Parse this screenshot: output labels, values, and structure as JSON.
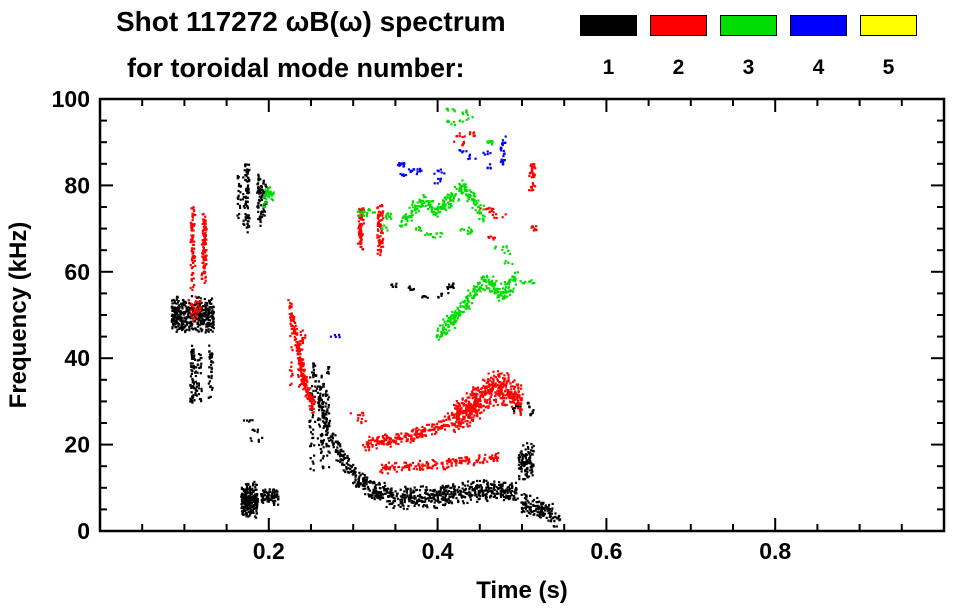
{
  "header": {
    "title_line1": "Shot 117272 ωB(ω) spectrum",
    "title_line2": "for toroidal mode number:"
  },
  "legend": {
    "items": [
      {
        "label": "1",
        "color": "#000000"
      },
      {
        "label": "2",
        "color": "#ff0000"
      },
      {
        "label": "3",
        "color": "#00dd00"
      },
      {
        "label": "4",
        "color": "#0000ff"
      },
      {
        "label": "5",
        "color": "#ffff00"
      }
    ]
  },
  "chart_data": {
    "type": "scatter",
    "title": "Shot 117272 ωB(ω) spectrum for toroidal mode number",
    "xlabel": "Time (s)",
    "ylabel": "Frequency (kHz)",
    "xlim": [
      0.0,
      1.0
    ],
    "ylim": [
      0,
      100
    ],
    "x_major_ticks": [
      0.2,
      0.4,
      0.6,
      0.8
    ],
    "x_tick_labels": [
      "0.2",
      "0.4",
      "0.6",
      "0.8"
    ],
    "x_minor_step": 0.05,
    "y_major_ticks": [
      0,
      20,
      40,
      60,
      80,
      100
    ],
    "y_tick_labels": [
      "0",
      "20",
      "40",
      "60",
      "80",
      "100"
    ],
    "y_minor_step": 5,
    "grid": false,
    "legend_position": "top-right",
    "series": [
      {
        "name": "toroidal mode n=1",
        "color": "#000000",
        "clusters": [
          {
            "type": "blob",
            "t": [
              0.085,
              0.135
            ],
            "f": [
              44,
              56
            ],
            "n": 420
          },
          {
            "type": "vstreaks",
            "t": [
              0.1,
              0.142
            ],
            "f": [
              28,
              44
            ],
            "k": 7,
            "n": 130
          },
          {
            "type": "vstreaks",
            "t": [
              0.164,
              0.178
            ],
            "f": [
              68,
              86
            ],
            "k": 5,
            "n": 110
          },
          {
            "type": "vstreaks",
            "t": [
              0.187,
              0.2
            ],
            "f": [
              70,
              84
            ],
            "k": 4,
            "n": 80
          },
          {
            "type": "blob",
            "t": [
              0.167,
              0.187
            ],
            "f": [
              1,
              13
            ],
            "n": 240
          },
          {
            "type": "blob",
            "t": [
              0.19,
              0.212
            ],
            "f": [
              5,
              11
            ],
            "n": 90
          },
          {
            "type": "dashes",
            "t": [
              0.175,
              0.2
            ],
            "f": [
              21,
              26
            ],
            "k": 3,
            "n": 15
          },
          {
            "type": "vstreaks",
            "t": [
              0.25,
              0.272
            ],
            "f": [
              12,
              40
            ],
            "k": 7,
            "n": 140
          },
          {
            "type": "path",
            "pts": [
              [
                0.252,
                38
              ],
              [
                0.265,
                27
              ],
              [
                0.278,
                20
              ],
              [
                0.292,
                15
              ],
              [
                0.31,
                11
              ],
              [
                0.335,
                8.5
              ],
              [
                0.365,
                7.5
              ],
              [
                0.4,
                8
              ],
              [
                0.435,
                9
              ],
              [
                0.465,
                9.5
              ],
              [
                0.495,
                9
              ]
            ],
            "w": 3,
            "n": 780
          },
          {
            "type": "dashes",
            "t": [
              0.34,
              0.425
            ],
            "f": [
              54,
              57
            ],
            "k": 6,
            "n": 36
          },
          {
            "type": "blob",
            "t": [
              0.496,
              0.514
            ],
            "f": [
              10,
              22
            ],
            "n": 110
          },
          {
            "type": "dashes",
            "t": [
              0.495,
              0.512
            ],
            "f": [
              27,
              32
            ],
            "k": 4,
            "n": 22
          },
          {
            "type": "path",
            "pts": [
              [
                0.5,
                6.5
              ],
              [
                0.518,
                5.5
              ],
              [
                0.532,
                4
              ],
              [
                0.545,
                2.5
              ]
            ],
            "w": 2.8,
            "n": 150
          }
        ]
      },
      {
        "name": "toroidal mode n=2",
        "color": "#ff0000",
        "clusters": [
          {
            "type": "vstreaks",
            "t": [
              0.103,
              0.126
            ],
            "f": [
              55,
              76
            ],
            "k": 7,
            "n": 180
          },
          {
            "type": "blob",
            "t": [
              0.105,
              0.12
            ],
            "f": [
              47,
              56
            ],
            "n": 36
          },
          {
            "type": "path",
            "pts": [
              [
                0.224,
                52
              ],
              [
                0.232,
                45
              ],
              [
                0.24,
                37
              ],
              [
                0.248,
                31
              ],
              [
                0.254,
                28.5
              ]
            ],
            "w": 2.6,
            "n": 190
          },
          {
            "type": "vstreaks",
            "t": [
              0.225,
              0.242
            ],
            "f": [
              30,
              52
            ],
            "k": 4,
            "n": 60
          },
          {
            "type": "vstreaks",
            "t": [
              0.298,
              0.335
            ],
            "f": [
              63,
              76
            ],
            "k": 6,
            "n": 140
          },
          {
            "type": "dashes",
            "t": [
              0.3,
              0.318
            ],
            "f": [
              24,
              27
            ],
            "k": 2,
            "n": 12
          },
          {
            "type": "path",
            "pts": [
              [
                0.313,
                20
              ],
              [
                0.345,
                21
              ],
              [
                0.375,
                22.5
              ],
              [
                0.405,
                24.5
              ],
              [
                0.42,
                26
              ]
            ],
            "w": 2,
            "n": 230
          },
          {
            "type": "path",
            "pts": [
              [
                0.42,
                26
              ],
              [
                0.44,
                28.5
              ],
              [
                0.455,
                31.5
              ],
              [
                0.468,
                33.5
              ],
              [
                0.479,
                33
              ],
              [
                0.49,
                31.5
              ],
              [
                0.5,
                29.5
              ]
            ],
            "w": 4.5,
            "n": 520
          },
          {
            "type": "path",
            "pts": [
              [
                0.332,
                14.5
              ],
              [
                0.37,
                15
              ],
              [
                0.41,
                15.5
              ],
              [
                0.445,
                16.5
              ],
              [
                0.472,
                17
              ]
            ],
            "w": 1.4,
            "n": 170
          },
          {
            "type": "dashes",
            "t": [
              0.425,
              0.447
            ],
            "f": [
              88,
              92
            ],
            "k": 3,
            "n": 18
          },
          {
            "type": "dashes",
            "t": [
              0.455,
              0.478
            ],
            "f": [
              66,
              75
            ],
            "k": 4,
            "n": 24
          },
          {
            "type": "vstreaks",
            "t": [
              0.499,
              0.515
            ],
            "f": [
              78,
              86
            ],
            "k": 3,
            "n": 36
          },
          {
            "type": "dashes",
            "t": [
              0.5,
              0.522
            ],
            "f": [
              70,
              74
            ],
            "k": 2,
            "n": 10
          }
        ]
      },
      {
        "name": "toroidal mode n=3",
        "color": "#00dd00",
        "clusters": [
          {
            "type": "path",
            "pts": [
              [
                0.194,
                76
              ],
              [
                0.199,
                79
              ],
              [
                0.205,
                77
              ]
            ],
            "w": 1.8,
            "n": 36
          },
          {
            "type": "dashes",
            "t": [
              0.3,
              0.352
            ],
            "f": [
              70,
              79
            ],
            "k": 6,
            "n": 36
          },
          {
            "type": "path",
            "pts": [
              [
                0.355,
                71
              ],
              [
                0.37,
                74
              ],
              [
                0.385,
                76.5
              ],
              [
                0.4,
                74
              ],
              [
                0.415,
                77
              ],
              [
                0.43,
                79.5
              ],
              [
                0.444,
                76
              ],
              [
                0.455,
                72.5
              ]
            ],
            "w": 2.2,
            "n": 230
          },
          {
            "type": "dashes",
            "t": [
              0.35,
              0.45
            ],
            "f": [
              66,
              70
            ],
            "k": 5,
            "n": 28
          },
          {
            "type": "path",
            "pts": [
              [
                0.4,
                45
              ],
              [
                0.414,
                48
              ],
              [
                0.428,
                51
              ],
              [
                0.442,
                54.5
              ],
              [
                0.454,
                58
              ],
              [
                0.464,
                57
              ],
              [
                0.474,
                54.5
              ],
              [
                0.484,
                56.5
              ],
              [
                0.494,
                59
              ]
            ],
            "w": 2.4,
            "n": 270
          },
          {
            "type": "dashes",
            "t": [
              0.414,
              0.436
            ],
            "f": [
              94,
              99
            ],
            "k": 4,
            "n": 22
          },
          {
            "type": "dashes",
            "t": [
              0.455,
              0.47
            ],
            "f": [
              88,
              92
            ],
            "k": 2,
            "n": 10
          },
          {
            "type": "dashes",
            "t": [
              0.466,
              0.49
            ],
            "f": [
              62,
              66
            ],
            "k": 3,
            "n": 15
          },
          {
            "type": "dashes",
            "t": [
              0.5,
              0.512
            ],
            "f": [
              57,
              60
            ],
            "k": 2,
            "n": 10
          }
        ]
      },
      {
        "name": "toroidal mode n=4",
        "color": "#0000ff",
        "clusters": [
          {
            "type": "dashes",
            "t": [
              0.345,
              0.38
            ],
            "f": [
              82,
              86
            ],
            "k": 5,
            "n": 28
          },
          {
            "type": "dashes",
            "t": [
              0.388,
              0.406
            ],
            "f": [
              81,
              84
            ],
            "k": 2,
            "n": 12
          },
          {
            "type": "dashes",
            "t": [
              0.428,
              0.462
            ],
            "f": [
              84,
              88
            ],
            "k": 4,
            "n": 20
          },
          {
            "type": "vstreaks",
            "t": [
              0.468,
              0.483
            ],
            "f": [
              84,
              92
            ],
            "k": 2,
            "n": 24
          },
          {
            "type": "dashes",
            "t": [
              0.28,
              0.292
            ],
            "f": [
              44,
              47
            ],
            "k": 1,
            "n": 5
          }
        ]
      },
      {
        "name": "toroidal mode n=5",
        "color": "#ffff00",
        "clusters": []
      }
    ]
  }
}
